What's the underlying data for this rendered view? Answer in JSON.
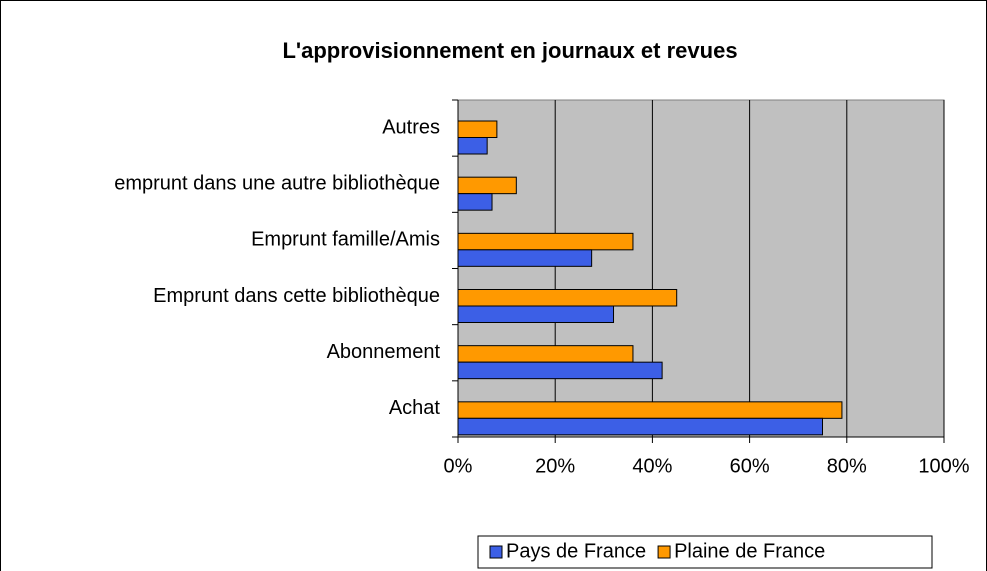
{
  "chart_data": {
    "type": "barh",
    "title": "L'approvisionnement en journaux et revues",
    "categories": [
      "Autres",
      "emprunt dans une autre bibliothèque",
      "Emprunt famille/Amis",
      "Emprunt dans cette bibliothèque",
      "Abonnement",
      "Achat"
    ],
    "series": [
      {
        "name": "Pays de France",
        "color": "#3c5fe6",
        "values": [
          6,
          7,
          27.5,
          32,
          42,
          75
        ]
      },
      {
        "name": "Plaine de France",
        "color": "#ff9900",
        "values": [
          8,
          12,
          36,
          45,
          36,
          79
        ]
      }
    ],
    "xlim": [
      0,
      100
    ],
    "xticks": [
      {
        "value": 0,
        "label": "0%"
      },
      {
        "value": 20,
        "label": "20%"
      },
      {
        "value": 40,
        "label": "40%"
      },
      {
        "value": 60,
        "label": "60%"
      },
      {
        "value": 80,
        "label": "80%"
      },
      {
        "value": 100,
        "label": "100%"
      }
    ],
    "grid": true,
    "legend": "bottom"
  }
}
